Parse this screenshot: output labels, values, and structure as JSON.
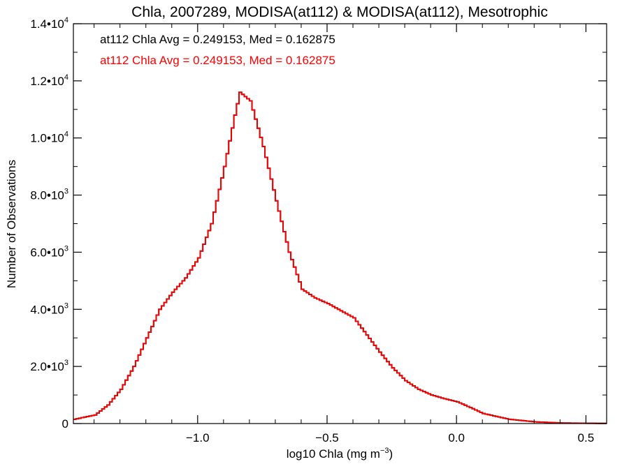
{
  "chart_data": {
    "type": "line",
    "title": "Chla, 2007289, MODISA(at112) & MODISA(at112), Mesotrophic",
    "xlabel": "log10 Chla (mg m",
    "xlabel_sup": "−3",
    "xlabel_suffix": ")",
    "ylabel": "Number of Observations",
    "xlim": [
      -1.48,
      0.58
    ],
    "ylim": [
      0,
      14000
    ],
    "x_ticks": [
      {
        "value": -1.0,
        "label": "−1.0"
      },
      {
        "value": -0.5,
        "label": "−0.5"
      },
      {
        "value": 0.0,
        "label": "0.0"
      },
      {
        "value": 0.5,
        "label": "0.5"
      }
    ],
    "y_ticks": [
      {
        "value": 0,
        "label": "0",
        "sup": ""
      },
      {
        "value": 2000,
        "label": "2.0•10",
        "sup": "3"
      },
      {
        "value": 4000,
        "label": "4.0•10",
        "sup": "3"
      },
      {
        "value": 6000,
        "label": "6.0•10",
        "sup": "3"
      },
      {
        "value": 8000,
        "label": "8.0•10",
        "sup": "3"
      },
      {
        "value": 10000,
        "label": "1.0•10",
        "sup": "4"
      },
      {
        "value": 12000,
        "label": "1.2•10",
        "sup": "4"
      },
      {
        "value": 14000,
        "label": "1.4•10",
        "sup": "4"
      }
    ],
    "annotations": [
      {
        "text": "at112 Chla Avg = 0.249153, Med = 0.162875",
        "color": "#000000"
      },
      {
        "text": "at112 Chla Avg = 0.249153, Med = 0.162875",
        "color": "#ff0000"
      }
    ],
    "series": [
      {
        "color": "#000000",
        "points": [
          [
            -1.48,
            150
          ],
          [
            -1.4,
            300
          ],
          [
            -1.35,
            650
          ],
          [
            -1.3,
            1200
          ],
          [
            -1.25,
            2000
          ],
          [
            -1.2,
            3000
          ],
          [
            -1.15,
            4000
          ],
          [
            -1.1,
            4600
          ],
          [
            -1.05,
            5100
          ],
          [
            -1.0,
            5800
          ],
          [
            -0.95,
            7000
          ],
          [
            -0.9,
            9000
          ],
          [
            -0.86,
            10800
          ],
          [
            -0.84,
            11600
          ],
          [
            -0.8,
            11300
          ],
          [
            -0.75,
            9700
          ],
          [
            -0.7,
            7800
          ],
          [
            -0.65,
            6000
          ],
          [
            -0.6,
            4700
          ],
          [
            -0.55,
            4400
          ],
          [
            -0.5,
            4200
          ],
          [
            -0.45,
            3950
          ],
          [
            -0.4,
            3700
          ],
          [
            -0.35,
            3100
          ],
          [
            -0.3,
            2500
          ],
          [
            -0.25,
            1950
          ],
          [
            -0.2,
            1500
          ],
          [
            -0.15,
            1200
          ],
          [
            -0.1,
            1000
          ],
          [
            -0.05,
            870
          ],
          [
            0.0,
            760
          ],
          [
            0.05,
            560
          ],
          [
            0.1,
            350
          ],
          [
            0.2,
            150
          ],
          [
            0.3,
            60
          ],
          [
            0.4,
            20
          ],
          [
            0.5,
            10
          ],
          [
            0.58,
            5
          ]
        ]
      },
      {
        "color": "#ff0000",
        "points": [
          [
            -1.48,
            150
          ],
          [
            -1.4,
            300
          ],
          [
            -1.35,
            650
          ],
          [
            -1.3,
            1200
          ],
          [
            -1.25,
            2000
          ],
          [
            -1.2,
            3000
          ],
          [
            -1.15,
            4000
          ],
          [
            -1.1,
            4600
          ],
          [
            -1.05,
            5100
          ],
          [
            -1.0,
            5800
          ],
          [
            -0.95,
            7000
          ],
          [
            -0.9,
            9000
          ],
          [
            -0.86,
            10800
          ],
          [
            -0.84,
            11600
          ],
          [
            -0.8,
            11300
          ],
          [
            -0.75,
            9700
          ],
          [
            -0.7,
            7800
          ],
          [
            -0.65,
            6000
          ],
          [
            -0.6,
            4700
          ],
          [
            -0.55,
            4400
          ],
          [
            -0.5,
            4200
          ],
          [
            -0.45,
            3950
          ],
          [
            -0.4,
            3700
          ],
          [
            -0.35,
            3100
          ],
          [
            -0.3,
            2500
          ],
          [
            -0.25,
            1950
          ],
          [
            -0.2,
            1500
          ],
          [
            -0.15,
            1200
          ],
          [
            -0.1,
            1000
          ],
          [
            -0.05,
            870
          ],
          [
            0.0,
            760
          ],
          [
            0.05,
            560
          ],
          [
            0.1,
            350
          ],
          [
            0.2,
            150
          ],
          [
            0.3,
            60
          ],
          [
            0.4,
            20
          ],
          [
            0.5,
            10
          ],
          [
            0.58,
            5
          ]
        ]
      }
    ]
  }
}
